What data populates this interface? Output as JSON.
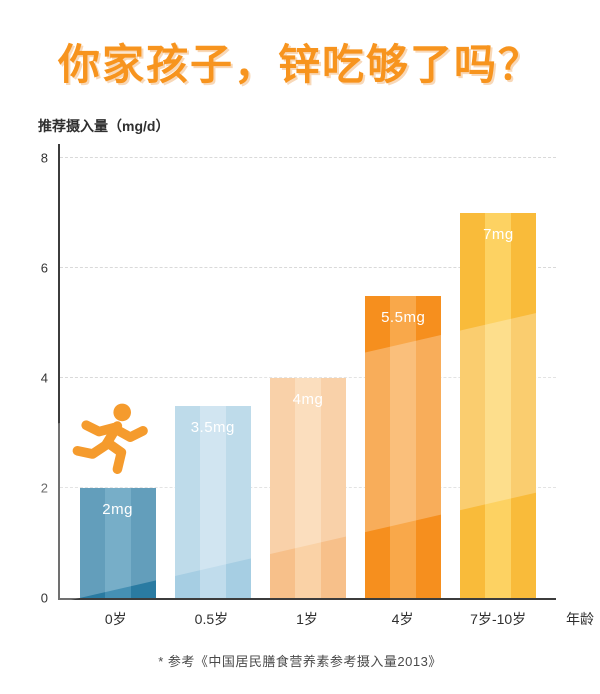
{
  "title": "你家孩子，锌吃够了吗？",
  "footnote": "* 参考《中国居民膳食营养素参考摄入量2013》",
  "accent_color": "#f7941e",
  "chart_data": {
    "type": "bar",
    "title": "你家孩子，锌吃够了吗？",
    "ylabel": "推荐摄入量（mg/d）",
    "xlabel": "年龄",
    "categories": [
      "0岁",
      "0.5岁",
      "1岁",
      "4岁",
      "7岁-10岁"
    ],
    "values": [
      2,
      3.5,
      4,
      5.5,
      7
    ],
    "value_labels": [
      "2mg",
      "3.5mg",
      "4mg",
      "5.5mg",
      "7mg"
    ],
    "bar_colors": [
      "#2a7ba2",
      "#a6cee3",
      "#f7c08a",
      "#f68f1e",
      "#f9bb3a"
    ],
    "bar_colors_light": [
      "#4590b4",
      "#c0dcec",
      "#fad2a6",
      "#f9a84a",
      "#fdd262"
    ],
    "label_color": "#ffffff",
    "ylim": [
      0,
      8
    ],
    "yticks": [
      0,
      2,
      4,
      6,
      8
    ],
    "grid": "dashed-horizontal",
    "legend": "none",
    "annotations": [
      "runner-pictogram above 0岁 bar"
    ]
  }
}
